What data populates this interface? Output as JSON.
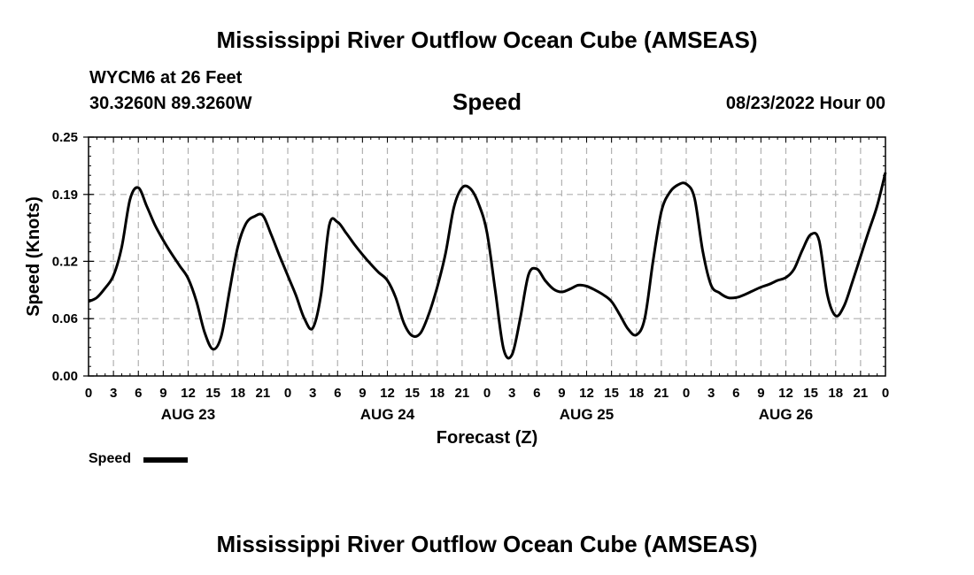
{
  "header": {
    "title": "Mississippi River Outflow Ocean Cube (AMSEAS)",
    "station": "WYCM6 at 26 Feet",
    "coords": "30.3260N  89.3260W",
    "plot_title": "Speed",
    "datetime": "08/23/2022 Hour 00"
  },
  "footer": {
    "title": "Mississippi River Outflow Ocean Cube (AMSEAS)"
  },
  "legend": {
    "label": "Speed",
    "color": "#000000"
  },
  "chart_data": {
    "type": "line",
    "title": "Speed",
    "xlabel": "Forecast (Z)",
    "ylabel": "Speed (Knots)",
    "xlim": [
      0,
      96
    ],
    "ylim": [
      0.0,
      0.25
    ],
    "grid": true,
    "x_tick_labels": [
      "0",
      "3",
      "6",
      "9",
      "12",
      "15",
      "18",
      "21",
      "0",
      "3",
      "6",
      "9",
      "12",
      "15",
      "18",
      "21",
      "0",
      "3",
      "6",
      "9",
      "12",
      "15",
      "18",
      "21",
      "0",
      "3",
      "6",
      "9",
      "12",
      "15",
      "18",
      "21",
      "0"
    ],
    "y_tick_labels": [
      "0.00",
      "0.06",
      "0.12",
      "0.19",
      "0.25"
    ],
    "y_tick_values": [
      0.0,
      0.06,
      0.12,
      0.19,
      0.25
    ],
    "day_labels": [
      {
        "label": "AUG 23",
        "hour": 12
      },
      {
        "label": "AUG 24",
        "hour": 36
      },
      {
        "label": "AUG 25",
        "hour": 60
      },
      {
        "label": "AUG 26",
        "hour": 84
      }
    ],
    "series": [
      {
        "name": "Speed",
        "color": "#000000",
        "x": [
          0,
          1,
          2,
          3,
          4,
          5,
          6,
          7,
          8,
          9,
          10,
          11,
          12,
          13,
          14,
          15,
          16,
          17,
          18,
          19,
          20,
          21,
          22,
          23,
          24,
          25,
          26,
          27,
          28,
          29,
          30,
          31,
          32,
          33,
          34,
          35,
          36,
          37,
          38,
          39,
          40,
          41,
          42,
          43,
          44,
          45,
          46,
          47,
          48,
          49,
          50,
          51,
          52,
          53,
          54,
          55,
          56,
          57,
          58,
          59,
          60,
          61,
          62,
          63,
          64,
          65,
          66,
          67,
          68,
          69,
          70,
          71,
          72,
          73,
          74,
          75,
          76,
          77,
          78,
          79,
          80,
          81,
          82,
          83,
          84,
          85,
          86,
          87,
          88,
          89,
          90,
          91,
          92,
          93,
          94,
          95,
          96
        ],
        "values": [
          0.078,
          0.082,
          0.092,
          0.105,
          0.135,
          0.185,
          0.197,
          0.178,
          0.158,
          0.142,
          0.128,
          0.115,
          0.102,
          0.078,
          0.045,
          0.028,
          0.042,
          0.09,
          0.136,
          0.16,
          0.167,
          0.168,
          0.148,
          0.126,
          0.105,
          0.084,
          0.06,
          0.05,
          0.085,
          0.158,
          0.161,
          0.15,
          0.138,
          0.127,
          0.117,
          0.108,
          0.1,
          0.082,
          0.055,
          0.042,
          0.045,
          0.065,
          0.093,
          0.128,
          0.176,
          0.197,
          0.196,
          0.18,
          0.15,
          0.089,
          0.028,
          0.022,
          0.06,
          0.106,
          0.112,
          0.1,
          0.091,
          0.088,
          0.091,
          0.095,
          0.094,
          0.09,
          0.085,
          0.078,
          0.064,
          0.049,
          0.043,
          0.06,
          0.12,
          0.172,
          0.192,
          0.2,
          0.201,
          0.186,
          0.13,
          0.095,
          0.087,
          0.082,
          0.082,
          0.085,
          0.089,
          0.093,
          0.096,
          0.1,
          0.103,
          0.112,
          0.132,
          0.148,
          0.142,
          0.085,
          0.063,
          0.073,
          0.098,
          0.125,
          0.152,
          0.178,
          0.213
        ]
      }
    ]
  }
}
